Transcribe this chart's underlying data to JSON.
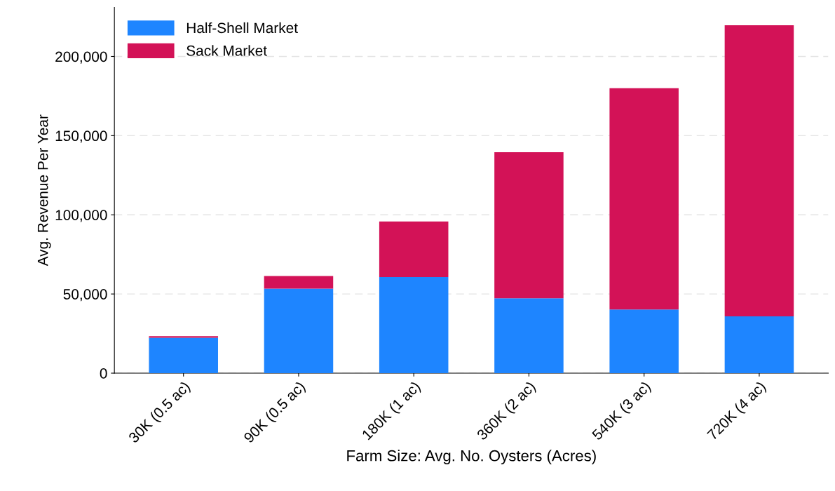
{
  "chart_data": {
    "type": "bar",
    "stacked": true,
    "xlabel": "Farm Size: Avg. No. Oysters (Acres)",
    "ylabel": "Avg. Revenue Per Year",
    "categories": [
      "30K (0.5 ac)",
      "90K (0.5 ac)",
      "180K (1 ac)",
      "360K (2 ac)",
      "540K (3 ac)",
      "720K (4 ac)"
    ],
    "series": [
      {
        "name": "Half-Shell Market",
        "color": "#1e85ff",
        "values": [
          22400,
          53400,
          60700,
          47300,
          40200,
          35900
        ]
      },
      {
        "name": "Sack Market",
        "color": "#d31257",
        "values": [
          1000,
          8000,
          35100,
          92200,
          139800,
          183800
        ]
      }
    ],
    "ylim": [
      0,
      231000
    ],
    "yticks": [
      {
        "value": 0,
        "label": "0"
      },
      {
        "value": 50000,
        "label": "50,000"
      },
      {
        "value": 100000,
        "label": "100,000"
      },
      {
        "value": 150000,
        "label": "150,000"
      },
      {
        "value": 200000,
        "label": "200,000"
      }
    ],
    "grid": "y",
    "legend": "top left"
  }
}
